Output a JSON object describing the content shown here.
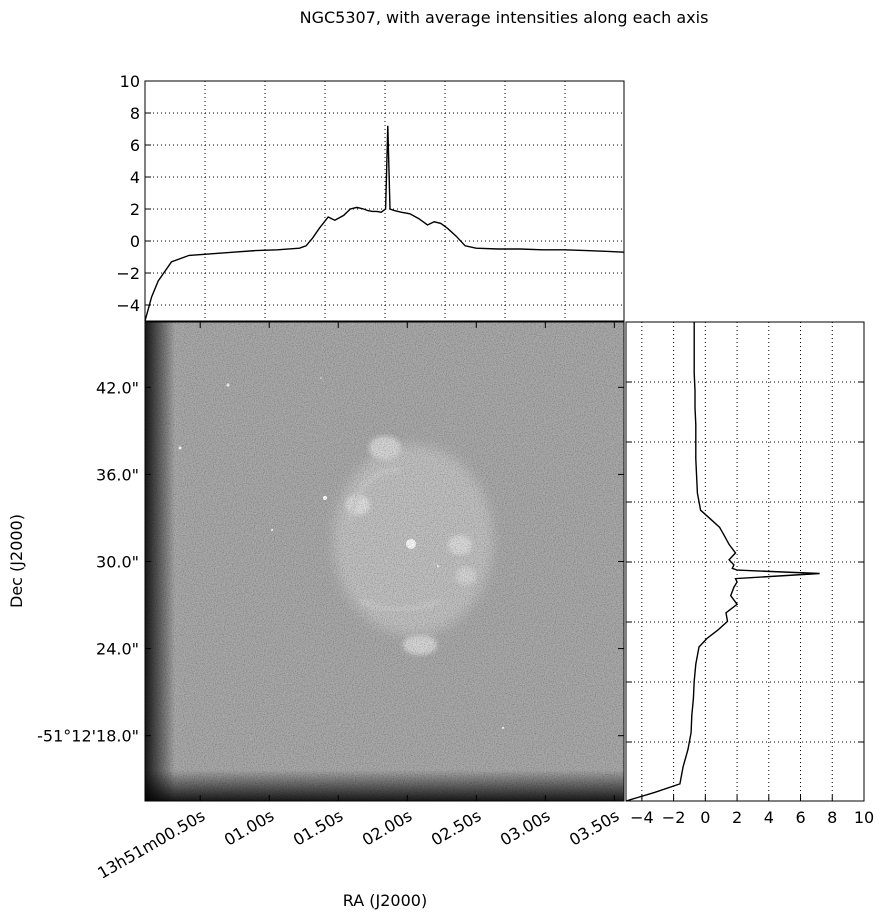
{
  "chart_data": [
    {
      "type": "line",
      "title": "NGC5307, with average intensities along each axis",
      "ylim": [
        -5,
        10
      ],
      "yticks": [
        10,
        8,
        6,
        4,
        2,
        0,
        -2,
        -4
      ],
      "grid": true,
      "series": [
        {
          "x": [
            0.0,
            0.03,
            0.06,
            0.12,
            0.2,
            0.3,
            0.4,
            0.5,
            0.6,
            0.7,
            0.73,
            0.76,
            0.79,
            0.83,
            0.86,
            0.9,
            0.93,
            0.96,
            0.99,
            1.01,
            1.03,
            1.05,
            1.07,
            1.09,
            1.1,
            1.11,
            1.13,
            1.16,
            1.2,
            1.24,
            1.28,
            1.31,
            1.34,
            1.37,
            1.41,
            1.45,
            1.5,
            1.6,
            1.7,
            1.8,
            1.9,
            2.0,
            2.1,
            2.17
          ],
          "y": [
            -5,
            -3.5,
            -2.5,
            -1.3,
            -0.9,
            -0.8,
            -0.7,
            -0.6,
            -0.55,
            -0.45,
            -0.3,
            0.2,
            0.8,
            1.5,
            1.3,
            1.6,
            2.0,
            2.1,
            2.0,
            1.9,
            1.85,
            1.85,
            1.8,
            2.0,
            7.2,
            2.0,
            1.9,
            1.8,
            1.7,
            1.4,
            1.0,
            1.2,
            1.1,
            0.8,
            0.3,
            -0.3,
            -0.45,
            -0.5,
            -0.5,
            -0.55,
            -0.55,
            -0.6,
            -0.65,
            -0.7
          ]
        }
      ]
    },
    {
      "type": "line",
      "xlim": [
        -5,
        10
      ],
      "xticks": [
        -4,
        -2,
        0,
        2,
        4,
        6,
        8,
        10
      ],
      "grid": true,
      "series": [
        {
          "y": [
            0.0,
            0.05,
            0.1,
            0.2,
            0.3,
            0.4,
            0.5,
            0.6,
            0.7,
            0.8,
            0.9,
            0.95,
            1.0,
            1.05,
            1.1,
            1.15,
            1.2,
            1.25,
            1.28,
            1.3,
            1.33,
            1.35,
            1.36,
            1.38,
            1.41,
            1.45,
            1.5,
            1.55,
            1.6,
            1.65,
            1.7,
            1.8,
            1.9,
            2.0,
            2.1,
            2.2,
            2.3,
            2.4,
            2.5,
            2.6,
            2.7,
            2.8
          ],
          "x": [
            -5,
            -3.2,
            -1.6,
            -1.4,
            -1.1,
            -0.9,
            -0.85,
            -0.75,
            -0.7,
            -0.6,
            -0.4,
            0.1,
            0.8,
            1.4,
            1.3,
            2.0,
            1.6,
            1.8,
            2.0,
            1.9,
            7.2,
            2.0,
            1.7,
            1.8,
            1.5,
            1.9,
            1.5,
            1.2,
            0.9,
            0.3,
            -0.3,
            -0.5,
            -0.55,
            -0.6,
            -0.6,
            -0.6,
            -0.65,
            -0.65,
            -0.7,
            -0.7,
            -0.7,
            -0.7
          ]
        }
      ]
    },
    {
      "type": "heatmap",
      "xlabel": "RA (J2000)",
      "ylabel": "Dec (J2000)",
      "x_tick_labels": [
        "13h51m00.50s",
        "01.00s",
        "01.50s",
        "02.00s",
        "02.50s",
        "03.00s",
        "03.50s"
      ],
      "y_tick_labels": [
        "42.0\"",
        "36.0\"",
        "30.0\"",
        "24.0\"",
        "-51°12'18.0\""
      ],
      "x_tick_values": [
        0.5,
        1.0,
        1.5,
        2.0,
        2.5,
        3.0,
        3.5
      ],
      "y_tick_values": [
        42,
        36,
        30,
        24,
        18
      ],
      "xlim": [
        0.1,
        3.57
      ],
      "ylim": [
        13.5,
        46.5
      ],
      "colormap": "gray"
    }
  ]
}
